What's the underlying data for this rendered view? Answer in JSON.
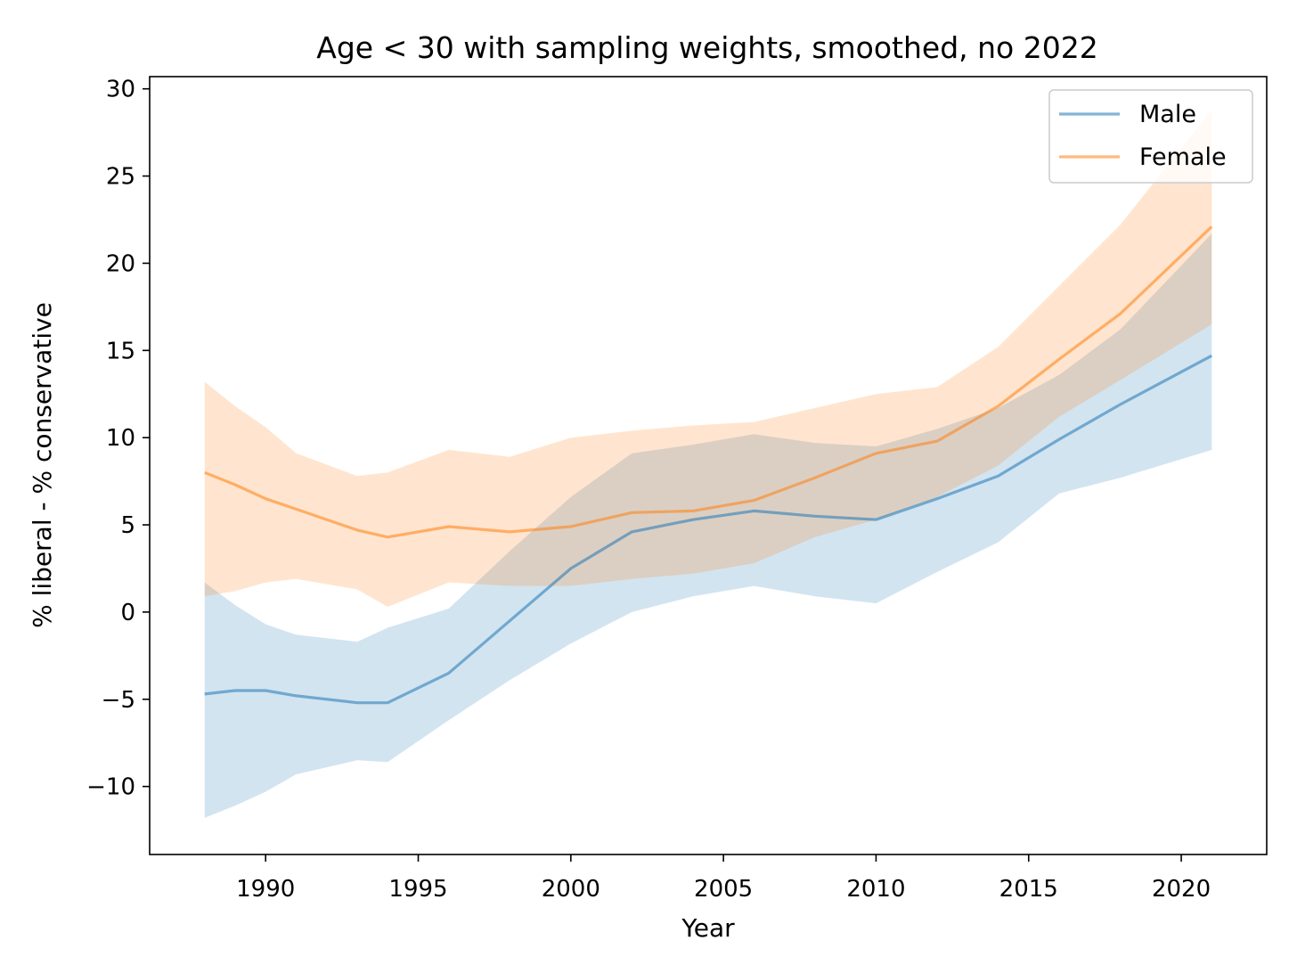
{
  "chart_data": {
    "type": "line",
    "title": "Age < 30 with sampling weights, smoothed, no 2022",
    "xlabel": "Year",
    "ylabel": "% liberal - % conservative",
    "xlim": [
      1986.2,
      2022.8
    ],
    "ylim": [
      -13.9,
      30.7
    ],
    "xticks": [
      1990,
      1995,
      2000,
      2005,
      2010,
      2015,
      2020
    ],
    "yticks": [
      -10,
      -5,
      0,
      5,
      10,
      15,
      20,
      25,
      30
    ],
    "ytick_labels": [
      "−10",
      "−5",
      "0",
      "5",
      "10",
      "15",
      "20",
      "25",
      "30"
    ],
    "grid": false,
    "legend_position": "top-right",
    "series": [
      {
        "name": "Male",
        "color": "#1f77b4",
        "line_opacity": 0.55,
        "band_opacity": 0.2,
        "x": [
          1988,
          1989,
          1990,
          1991,
          1993,
          1994,
          1996,
          1998,
          2000,
          2002,
          2004,
          2006,
          2008,
          2010,
          2012,
          2014,
          2016,
          2018,
          2021
        ],
        "y": [
          -4.7,
          -4.5,
          -4.5,
          -4.8,
          -5.2,
          -5.2,
          -3.5,
          -0.5,
          2.5,
          4.6,
          5.3,
          5.8,
          5.5,
          5.3,
          6.5,
          7.8,
          9.9,
          11.9,
          14.7
        ],
        "lower": [
          -11.8,
          -11.1,
          -10.3,
          -9.3,
          -8.5,
          -8.6,
          -6.2,
          -3.9,
          -1.8,
          0.0,
          0.9,
          1.5,
          0.9,
          0.5,
          2.3,
          4.0,
          6.8,
          7.7,
          9.3
        ],
        "upper": [
          1.7,
          0.4,
          -0.7,
          -1.3,
          -1.7,
          -0.9,
          0.2,
          3.5,
          6.6,
          9.1,
          9.6,
          10.2,
          9.7,
          9.5,
          10.5,
          11.7,
          13.6,
          16.2,
          21.7
        ]
      },
      {
        "name": "Female",
        "color": "#ff7f0e",
        "line_opacity": 0.55,
        "band_opacity": 0.2,
        "x": [
          1988,
          1989,
          1990,
          1991,
          1993,
          1994,
          1996,
          1998,
          2000,
          2002,
          2004,
          2006,
          2008,
          2010,
          2012,
          2014,
          2016,
          2018,
          2021
        ],
        "y": [
          8.0,
          7.3,
          6.5,
          5.9,
          4.7,
          4.3,
          4.9,
          4.6,
          4.9,
          5.7,
          5.8,
          6.4,
          7.7,
          9.1,
          9.8,
          11.8,
          14.5,
          17.1,
          22.1
        ],
        "lower": [
          0.9,
          1.2,
          1.7,
          1.9,
          1.3,
          0.3,
          1.7,
          1.5,
          1.5,
          1.9,
          2.2,
          2.8,
          4.3,
          5.3,
          6.6,
          8.4,
          11.2,
          13.3,
          16.5
        ],
        "upper": [
          13.2,
          11.8,
          10.6,
          9.1,
          7.8,
          8.0,
          9.3,
          8.9,
          10.0,
          10.4,
          10.7,
          10.9,
          11.7,
          12.5,
          12.9,
          15.2,
          18.7,
          22.2,
          28.8
        ]
      }
    ]
  }
}
